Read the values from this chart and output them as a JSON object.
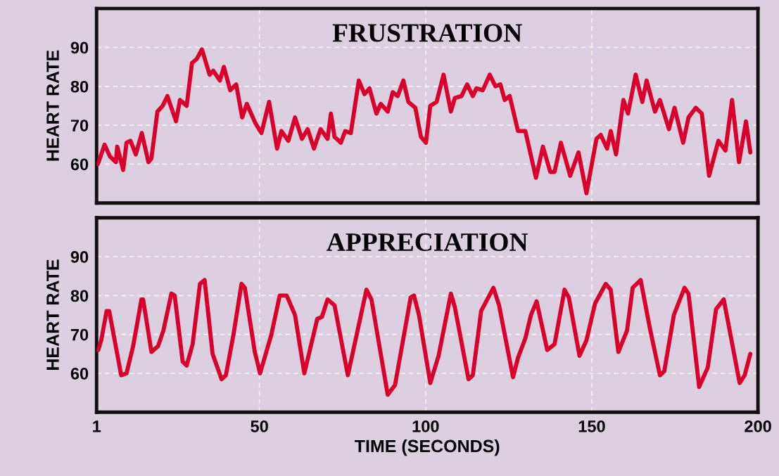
{
  "chart_data": [
    {
      "type": "line",
      "title": "FRUSTRATION",
      "ylabel": "HEART RATE",
      "color": "#d8002c",
      "grid": true,
      "tick_labels": "y",
      "xlim": [
        1,
        200
      ],
      "ylim": [
        50,
        100
      ],
      "xticks": [
        1,
        50,
        100,
        150,
        200
      ],
      "yticks": [
        60,
        70,
        80,
        90
      ],
      "x": [
        1.4,
        3.4,
        5,
        6.8,
        7.2,
        9,
        10,
        11.2,
        12.8,
        14.6,
        16.6,
        17.5,
        19.3,
        20.9,
        22.3,
        24.9,
        26.1,
        28.1,
        29.7,
        31.1,
        32.7,
        35,
        36.1,
        38.1,
        39.3,
        41.2,
        43,
        44.8,
        46.2,
        48.8,
        50.6,
        52.9,
        55.3,
        56.6,
        58.7,
        60.7,
        62.8,
        64.5,
        66.4,
        68.4,
        70.5,
        71.5,
        72.6,
        74.5,
        75.8,
        77.5,
        79.9,
        81.6,
        83.1,
        85.2,
        86.5,
        88.6,
        90.1,
        91.6,
        93.3,
        94.8,
        96.9,
        98.6,
        100.1,
        101.4,
        103.3,
        105.4,
        107.6,
        108.8,
        110.8,
        112.5,
        114.2,
        115.3,
        117.2,
        119.3,
        121,
        122.5,
        123.8,
        125.3,
        127.8,
        130,
        133.2,
        135.3,
        137.5,
        138.8,
        140.7,
        143.5,
        146,
        148.4,
        151.4,
        152.7,
        154.6,
        155.7,
        157.3,
        159.5,
        160.9,
        163.2,
        165.2,
        166.5,
        169,
        170.5,
        173.2,
        174.9,
        177.5,
        179.1,
        181.3,
        183.1,
        185.3,
        188.1,
        190.2,
        192.2,
        194.3,
        196.4,
        197.7
      ],
      "values": [
        60,
        65,
        62,
        60.5,
        64.5,
        58.5,
        65.5,
        66,
        62.5,
        68,
        60.5,
        61.5,
        73.5,
        75,
        77.5,
        71,
        76.5,
        75,
        86,
        87,
        89.5,
        83,
        84,
        81.5,
        85,
        79,
        80.5,
        72,
        75.5,
        70.5,
        68,
        76,
        64,
        68.5,
        66,
        72,
        66.5,
        69,
        64,
        69,
        66.5,
        73,
        67,
        65.5,
        68.5,
        68,
        81.5,
        78,
        79.5,
        73,
        75.5,
        73.5,
        78.5,
        77.5,
        81.5,
        76,
        74.5,
        67,
        65.5,
        75,
        76,
        83,
        73.5,
        77,
        77.5,
        80.5,
        77.5,
        79.5,
        79,
        83,
        80,
        80.5,
        76.5,
        77.5,
        68.5,
        68.5,
        56.5,
        64.5,
        58,
        58,
        65.5,
        57,
        63,
        52.5,
        66.5,
        67.5,
        64,
        68.5,
        62.5,
        76.5,
        73,
        83,
        76,
        81.5,
        73.5,
        76.5,
        69,
        74.5,
        65.5,
        72,
        74.5,
        73,
        57,
        66,
        63.5,
        76.5,
        60.5,
        71,
        63
      ]
    },
    {
      "type": "line",
      "title": "APPRECIATION",
      "ylabel": "HEART RATE",
      "xlabel": "TIME (SECONDS)",
      "color": "#d8002c",
      "grid": true,
      "xlim": [
        1,
        200
      ],
      "ylim": [
        50,
        100
      ],
      "xticks": [
        1,
        50,
        100,
        150,
        200
      ],
      "yticks": [
        60,
        70,
        80,
        90
      ],
      "x": [
        1.5,
        2.4,
        4,
        4.8,
        8.4,
        10,
        12,
        14.5,
        15,
        17.5,
        19.5,
        21.1,
        23.5,
        24.5,
        26.9,
        28.1,
        29.9,
        32.1,
        33.5,
        35.9,
        38.6,
        39.9,
        42.2,
        44.6,
        45.6,
        48.6,
        50.2,
        53.6,
        56.1,
        58.2,
        60.7,
        63.5,
        67.4,
        68.8,
        70.5,
        72.6,
        76.6,
        82.2,
        83.7,
        88.6,
        90.8,
        95.5,
        96.5,
        98,
        101.4,
        103.9,
        107.6,
        108.8,
        112.9,
        114.2,
        116.7,
        120.4,
        122.1,
        126.3,
        127.8,
        130,
        131.7,
        133.4,
        136.6,
        138.8,
        141.8,
        143.1,
        146.3,
        148.4,
        151,
        154.2,
        155.7,
        158,
        160.6,
        162.3,
        164.7,
        167.5,
        170.5,
        171.8,
        174.7,
        177.9,
        179.1,
        182.3,
        184.9,
        187.4,
        189.7,
        194.5,
        196,
        197.7
      ],
      "values": [
        66,
        68.5,
        76,
        76,
        59.5,
        60,
        67,
        79,
        79,
        65.5,
        67,
        71,
        80.5,
        80,
        63,
        62,
        67.5,
        83,
        84,
        65,
        58.5,
        59.5,
        70,
        83,
        82,
        65.5,
        60,
        70,
        80,
        80,
        75,
        60,
        74,
        74.5,
        79,
        77.5,
        59.5,
        81.5,
        79,
        54.5,
        57,
        79.5,
        80,
        75,
        57.5,
        64.5,
        80.5,
        77,
        58.5,
        59.5,
        76,
        82,
        77.5,
        59,
        64,
        69,
        75,
        78.5,
        66,
        67.5,
        81.5,
        79.5,
        64.5,
        68.5,
        78,
        83,
        81.5,
        65.5,
        71,
        82,
        84,
        71.5,
        59.5,
        60.5,
        75,
        82,
        80.5,
        56.5,
        61.5,
        76.5,
        79,
        57.5,
        59.5,
        65
      ]
    }
  ]
}
